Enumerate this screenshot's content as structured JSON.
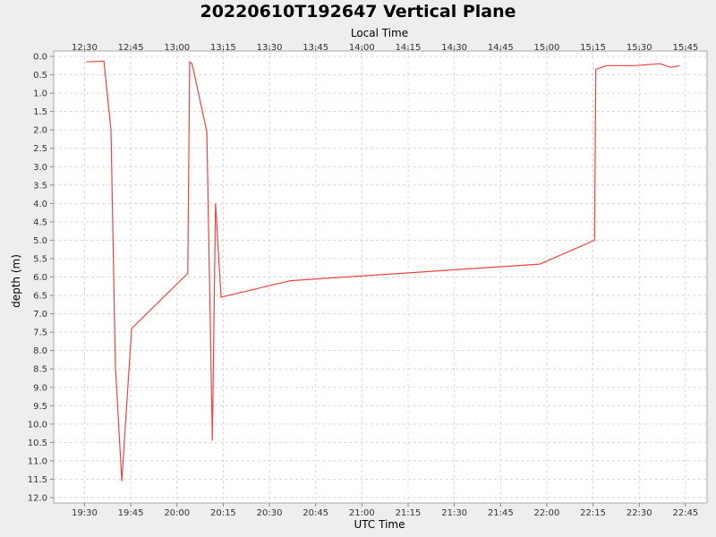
{
  "chart_data": {
    "type": "line",
    "title": "20220610T192647 Vertical Plane",
    "xlabel": "UTC Time",
    "x2label": "Local Time",
    "ylabel": "depth (m)",
    "y_inverted": true,
    "ylim": [
      0,
      12.1
    ],
    "grid": true,
    "background": "#eeeeee",
    "plot_background": "#ffffff",
    "series_color": "#ee4444",
    "xlim": [
      "19:20",
      "22:52"
    ],
    "x_ticks": [
      "19:30",
      "19:45",
      "20:00",
      "20:15",
      "20:30",
      "20:45",
      "21:00",
      "21:15",
      "21:30",
      "21:45",
      "22:00",
      "22:15",
      "22:30",
      "22:45"
    ],
    "x2_ticks": [
      "12:30",
      "12:45",
      "13:00",
      "13:15",
      "13:30",
      "13:45",
      "14:00",
      "14:15",
      "14:30",
      "14:45",
      "15:00",
      "15:15",
      "15:30",
      "15:45"
    ],
    "y_ticks": [
      "0.0",
      "0.5",
      "1.0",
      "1.5",
      "2.0",
      "2.5",
      "3.0",
      "3.5",
      "4.0",
      "4.5",
      "5.0",
      "5.5",
      "6.0",
      "6.5",
      "7.0",
      "7.5",
      "8.0",
      "8.5",
      "9.0",
      "9.5",
      "10.0",
      "10.5",
      "11.0",
      "11.5",
      "12.0"
    ],
    "series": [
      {
        "x": [
          "19:30:36",
          "19:36:18",
          "19:38:36",
          "19:40:00",
          "19:42:06",
          "19:45:18",
          "20:03:30",
          "20:04:06",
          "20:04:54",
          "20:09:42",
          "20:11:30",
          "20:12:30",
          "20:14:18",
          "20:36:48",
          "21:57:42",
          "22:15:30",
          "22:15:54",
          "22:19:24",
          "22:28:36",
          "22:36:42",
          "22:40:12",
          "22:43:06"
        ],
        "y": [
          0.15,
          0.13,
          2.0,
          8.4,
          11.55,
          7.4,
          5.9,
          0.15,
          0.2,
          2.05,
          10.45,
          4.0,
          6.55,
          6.1,
          5.65,
          5.0,
          0.35,
          0.25,
          0.25,
          0.2,
          0.3,
          0.25
        ]
      }
    ]
  }
}
